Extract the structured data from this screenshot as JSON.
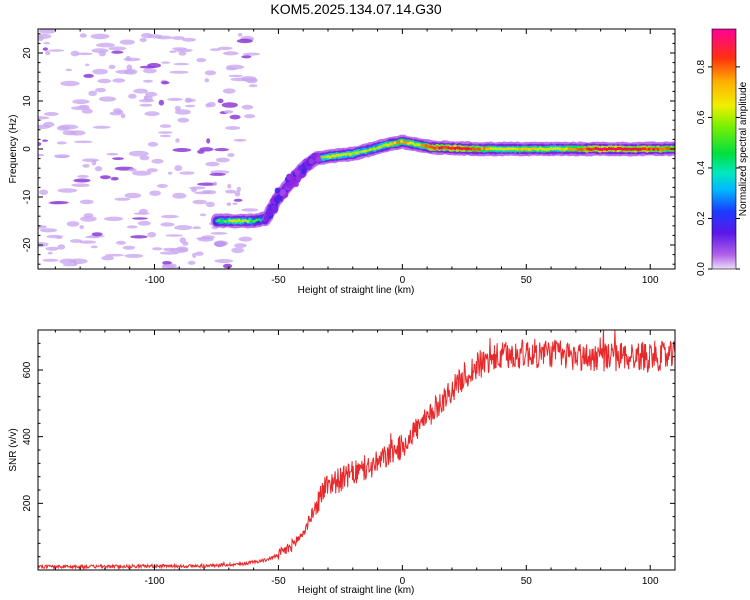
{
  "title": "KOM5.2025.134.07.14.G30",
  "colors": {
    "snr_line": "#e8282a",
    "noise_blob": "#c9a8f0",
    "noise_blob_dark": "#8d3bd6",
    "axis": "#000000"
  },
  "chart_data": [
    {
      "type": "heatmap",
      "title": "KOM5.2025.134.07.14.G30",
      "xlabel": "Height of straight line (km)",
      "ylabel": "Frequency (Hz)",
      "xlim": [
        -147,
        110
      ],
      "ylim": [
        -25,
        25
      ],
      "xticks": [
        -100,
        -50,
        0,
        50,
        100
      ],
      "yticks": [
        -20,
        -10,
        0,
        10,
        20
      ],
      "xtick_labels": [
        "-100",
        "-50",
        "0",
        "50",
        "100"
      ],
      "ytick_labels": [
        "-20",
        "-10",
        "0",
        "10",
        "20"
      ],
      "colorbar": {
        "label": "Normalized spectral amplitude",
        "range": [
          0,
          0.95
        ],
        "ticks": [
          0.0,
          0.2,
          0.4,
          0.6,
          0.8
        ],
        "tick_labels": [
          "0.0",
          "0.2",
          "0.4",
          "0.6",
          "0.8"
        ],
        "colormap": [
          "#e0c8f8",
          "#9a28e0",
          "#3020f0",
          "#00c8ff",
          "#00e060",
          "#b8f000",
          "#ffd800",
          "#ff6a00",
          "#ff1030",
          "#ff0090"
        ]
      },
      "ridge": [
        {
          "x": -75,
          "freq": -15.0,
          "amp": 0.4
        },
        {
          "x": -68,
          "freq": -15.0,
          "amp": 0.55
        },
        {
          "x": -60,
          "freq": -15.0,
          "amp": 0.45
        },
        {
          "x": -55,
          "freq": -14.5,
          "amp": 0.3
        },
        {
          "x": -50,
          "freq": -10.0,
          "amp": 0.18
        },
        {
          "x": -45,
          "freq": -7.0,
          "amp": 0.2
        },
        {
          "x": -40,
          "freq": -4.0,
          "amp": 0.3
        },
        {
          "x": -35,
          "freq": -2.0,
          "amp": 0.4
        },
        {
          "x": -28,
          "freq": -1.5,
          "amp": 0.6
        },
        {
          "x": -20,
          "freq": -1.0,
          "amp": 0.55
        },
        {
          "x": -12,
          "freq": 0.0,
          "amp": 0.5
        },
        {
          "x": -5,
          "freq": 1.0,
          "amp": 0.6
        },
        {
          "x": 0,
          "freq": 1.5,
          "amp": 0.7
        },
        {
          "x": 5,
          "freq": 1.0,
          "amp": 0.55
        },
        {
          "x": 12,
          "freq": 0.3,
          "amp": 0.8
        },
        {
          "x": 20,
          "freq": 0.2,
          "amp": 0.85
        },
        {
          "x": 30,
          "freq": 0.0,
          "amp": 0.75
        },
        {
          "x": 40,
          "freq": 0.0,
          "amp": 0.55
        },
        {
          "x": 50,
          "freq": 0.0,
          "amp": 0.65
        },
        {
          "x": 60,
          "freq": 0.0,
          "amp": 0.6
        },
        {
          "x": 70,
          "freq": 0.0,
          "amp": 0.7
        },
        {
          "x": 80,
          "freq": 0.0,
          "amp": 0.9
        },
        {
          "x": 90,
          "freq": 0.0,
          "amp": 0.85
        },
        {
          "x": 100,
          "freq": 0.0,
          "amp": 0.8
        },
        {
          "x": 110,
          "freq": 0.0,
          "amp": 0.75
        }
      ],
      "noise_region_x": [
        -147,
        -60
      ],
      "noise_region_freq": [
        -25,
        25
      ]
    },
    {
      "type": "line",
      "xlabel": "Height of straight line (km)",
      "ylabel": "SNR (v/v)",
      "xlim": [
        -147,
        110
      ],
      "ylim": [
        0,
        720
      ],
      "xticks": [
        -100,
        -50,
        0,
        50,
        100
      ],
      "yticks": [
        200,
        400,
        600
      ],
      "xtick_labels": [
        "-100",
        "-50",
        "0",
        "50",
        "100"
      ],
      "ytick_labels": [
        "200",
        "400",
        "600"
      ],
      "series": [
        {
          "x": [
            -147,
            -120,
            -100,
            -80,
            -65,
            -55,
            -50,
            -45,
            -40,
            -35,
            -32,
            -30,
            -25,
            -20,
            -15,
            -10,
            -5,
            0,
            5,
            10,
            15,
            20,
            25,
            30,
            35,
            40,
            45,
            50,
            55,
            60,
            65,
            70,
            75,
            80,
            85,
            90,
            95,
            100,
            105,
            110
          ],
          "values": [
            10,
            10,
            12,
            12,
            18,
            30,
            45,
            70,
            110,
            190,
            240,
            260,
            270,
            290,
            300,
            320,
            350,
            370,
            420,
            450,
            500,
            540,
            580,
            610,
            630,
            640,
            645,
            650,
            648,
            652,
            645,
            640,
            638,
            640,
            638,
            642,
            640,
            645,
            640,
            642
          ]
        }
      ]
    }
  ]
}
